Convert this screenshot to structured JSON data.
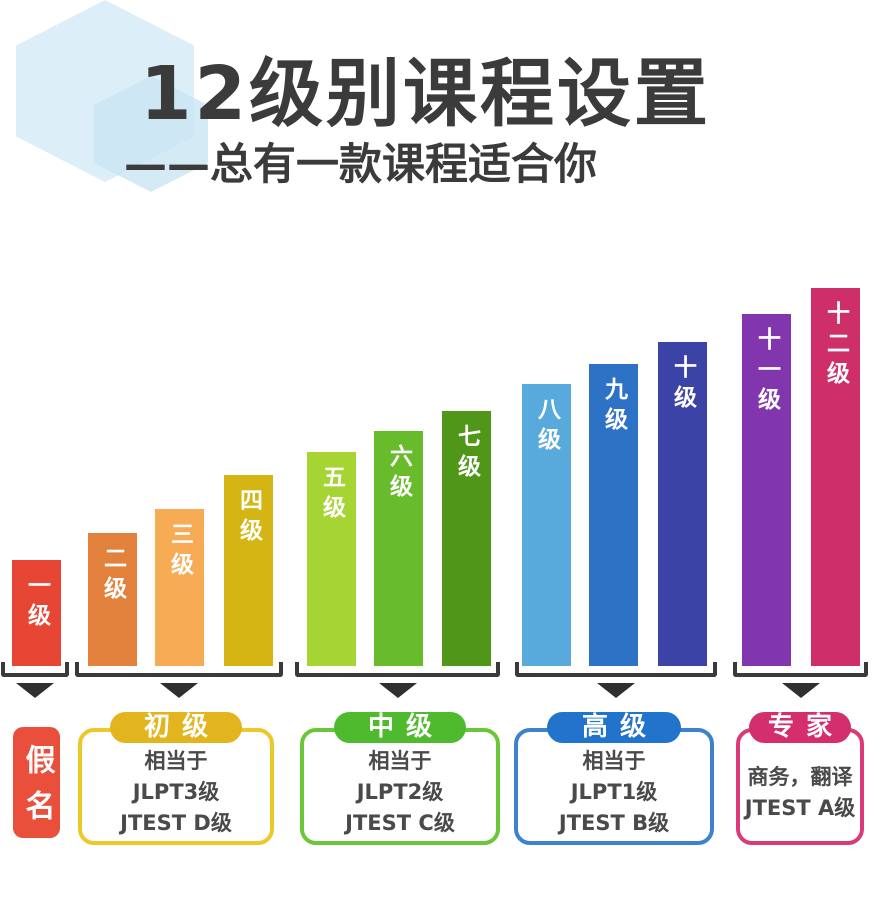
{
  "header": {
    "title": "12级别课程设置",
    "subtitle": "——总有一款课程适合你",
    "text_color": "#3b3b3b"
  },
  "decor": {
    "hexagon_colors": [
      "#dceff8",
      "#c9e5f3"
    ]
  },
  "icons": {
    "group_pointer": "triangle-down-icon"
  },
  "colors": {
    "bracket": "#3a3a3a",
    "arrow": "#2f2f2f",
    "box_text": "#4a4a4a",
    "bar_label": "#ffffff"
  },
  "chart_data": {
    "type": "bar",
    "title": "12级别课程设置",
    "subtitle": "——总有一款课程适合你",
    "categories": [
      "一级",
      "二级",
      "三级",
      "四级",
      "五级",
      "六级",
      "七级",
      "八级",
      "九级",
      "十级",
      "十一级",
      "十二级"
    ],
    "values": [
      106,
      133,
      157,
      191,
      214,
      235,
      255,
      282,
      302,
      324,
      352,
      378
    ],
    "value_note": "relative bar heights (no numeric axis shown in figure)",
    "colors": [
      "#e84634",
      "#e2813b",
      "#f8ab55",
      "#d4b513",
      "#a6d432",
      "#68bc2c",
      "#4f9619",
      "#57aadb",
      "#2e72c6",
      "#3c43a7",
      "#8136ad",
      "#ce2f69"
    ],
    "xlabel": "",
    "ylabel": "",
    "grid": false,
    "legend": false
  },
  "level_groups": [
    {
      "id": "kana",
      "label": "假名",
      "fill": "#ea4f3c",
      "covers": [
        "一级"
      ],
      "body_lines": []
    },
    {
      "id": "beginner",
      "label": "初级",
      "badge_color": "#e2b41e",
      "border_color": "#ecc92b",
      "covers": [
        "二级",
        "三级",
        "四级"
      ],
      "body_lines": [
        "相当于",
        "JLPT3级",
        "JTEST D级"
      ]
    },
    {
      "id": "intermediate",
      "label": "中级",
      "badge_color": "#4fba2e",
      "border_color": "#6cc63a",
      "covers": [
        "五级",
        "六级",
        "七级"
      ],
      "body_lines": [
        "相当于",
        "JLPT2级",
        "JTEST C级"
      ]
    },
    {
      "id": "advanced",
      "label": "高级",
      "badge_color": "#2273cb",
      "border_color": "#3d82cd",
      "covers": [
        "八级",
        "九级",
        "十级"
      ],
      "body_lines": [
        "相当于",
        "JLPT1级",
        "JTEST B级"
      ]
    },
    {
      "id": "expert",
      "label": "专家",
      "badge_color": "#d42e6f",
      "border_color": "#da3a77",
      "covers": [
        "十一级",
        "十二级"
      ],
      "body_lines": [
        "商务，翻译",
        "JTEST A级"
      ]
    }
  ]
}
